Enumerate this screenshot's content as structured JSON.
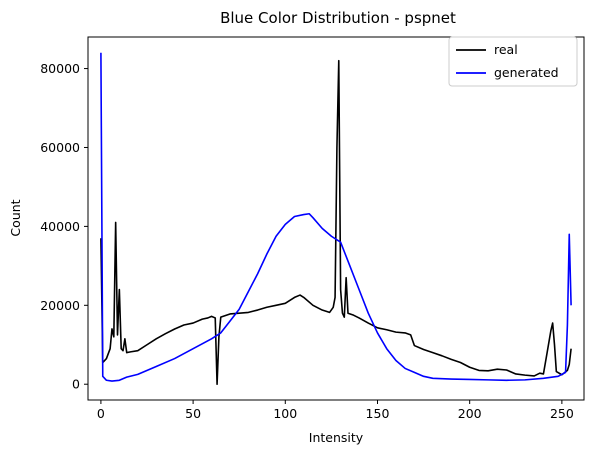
{
  "chart_data": {
    "type": "line",
    "title": "Blue Color Distribution - pspnet",
    "xlabel": "Intensity",
    "ylabel": "Count",
    "xlim": [
      -7,
      262
    ],
    "ylim": [
      -4000,
      88000
    ],
    "xticks": [
      0,
      50,
      100,
      150,
      200,
      250
    ],
    "yticks": [
      0,
      20000,
      40000,
      60000,
      80000
    ],
    "grid": false,
    "legend_position": "top-right",
    "series": [
      {
        "name": "real",
        "color": "#000000",
        "points": [
          [
            0,
            37000
          ],
          [
            1,
            5500
          ],
          [
            3,
            6500
          ],
          [
            5,
            9000
          ],
          [
            6,
            14000
          ],
          [
            7,
            12000
          ],
          [
            8,
            41000
          ],
          [
            9,
            12500
          ],
          [
            10,
            24000
          ],
          [
            11,
            9000
          ],
          [
            12,
            8500
          ],
          [
            13,
            11500
          ],
          [
            14,
            8000
          ],
          [
            16,
            8200
          ],
          [
            20,
            8500
          ],
          [
            25,
            10000
          ],
          [
            30,
            11500
          ],
          [
            35,
            12800
          ],
          [
            40,
            14000
          ],
          [
            45,
            15000
          ],
          [
            50,
            15500
          ],
          [
            55,
            16500
          ],
          [
            58,
            16800
          ],
          [
            60,
            17200
          ],
          [
            62,
            16800
          ],
          [
            63,
            0
          ],
          [
            64,
            12000
          ],
          [
            65,
            17000
          ],
          [
            70,
            17800
          ],
          [
            75,
            18000
          ],
          [
            80,
            18200
          ],
          [
            85,
            18800
          ],
          [
            90,
            19500
          ],
          [
            95,
            20000
          ],
          [
            100,
            20500
          ],
          [
            105,
            22000
          ],
          [
            108,
            22600
          ],
          [
            110,
            22000
          ],
          [
            115,
            20000
          ],
          [
            120,
            18800
          ],
          [
            124,
            18200
          ],
          [
            126,
            19500
          ],
          [
            127,
            22000
          ],
          [
            128,
            60000
          ],
          [
            129,
            82000
          ],
          [
            130,
            24000
          ],
          [
            131,
            18000
          ],
          [
            132,
            17000
          ],
          [
            133,
            27000
          ],
          [
            134,
            18000
          ],
          [
            137,
            17500
          ],
          [
            140,
            16800
          ],
          [
            145,
            15500
          ],
          [
            150,
            14300
          ],
          [
            155,
            13800
          ],
          [
            160,
            13200
          ],
          [
            165,
            13000
          ],
          [
            168,
            12500
          ],
          [
            170,
            9800
          ],
          [
            175,
            8800
          ],
          [
            180,
            8000
          ],
          [
            185,
            7200
          ],
          [
            190,
            6300
          ],
          [
            195,
            5500
          ],
          [
            200,
            4300
          ],
          [
            205,
            3500
          ],
          [
            210,
            3400
          ],
          [
            215,
            3800
          ],
          [
            220,
            3600
          ],
          [
            225,
            2600
          ],
          [
            230,
            2300
          ],
          [
            235,
            2100
          ],
          [
            238,
            2800
          ],
          [
            240,
            2600
          ],
          [
            242,
            8000
          ],
          [
            244,
            13500
          ],
          [
            245,
            15500
          ],
          [
            246,
            10000
          ],
          [
            247,
            3200
          ],
          [
            250,
            2400
          ],
          [
            253,
            3500
          ],
          [
            254,
            5000
          ],
          [
            255,
            9000
          ]
        ]
      },
      {
        "name": "generated",
        "color": "#0000ff",
        "points": [
          [
            0,
            84000
          ],
          [
            1,
            2000
          ],
          [
            3,
            1000
          ],
          [
            6,
            800
          ],
          [
            10,
            1000
          ],
          [
            14,
            1800
          ],
          [
            20,
            2500
          ],
          [
            30,
            4500
          ],
          [
            40,
            6500
          ],
          [
            50,
            9000
          ],
          [
            60,
            11500
          ],
          [
            65,
            13000
          ],
          [
            70,
            16000
          ],
          [
            75,
            19000
          ],
          [
            80,
            23500
          ],
          [
            85,
            28000
          ],
          [
            90,
            33000
          ],
          [
            95,
            37500
          ],
          [
            100,
            40500
          ],
          [
            105,
            42500
          ],
          [
            110,
            43000
          ],
          [
            113,
            43200
          ],
          [
            115,
            42200
          ],
          [
            120,
            39500
          ],
          [
            125,
            37500
          ],
          [
            130,
            36000
          ],
          [
            135,
            30000
          ],
          [
            140,
            24000
          ],
          [
            145,
            18000
          ],
          [
            150,
            13000
          ],
          [
            155,
            9000
          ],
          [
            160,
            6000
          ],
          [
            165,
            4000
          ],
          [
            170,
            3000
          ],
          [
            175,
            2000
          ],
          [
            180,
            1500
          ],
          [
            190,
            1300
          ],
          [
            200,
            1200
          ],
          [
            210,
            1100
          ],
          [
            220,
            1000
          ],
          [
            230,
            1100
          ],
          [
            240,
            1500
          ],
          [
            248,
            2000
          ],
          [
            252,
            3000
          ],
          [
            253,
            15000
          ],
          [
            254,
            38000
          ],
          [
            255,
            20000
          ]
        ]
      }
    ]
  }
}
